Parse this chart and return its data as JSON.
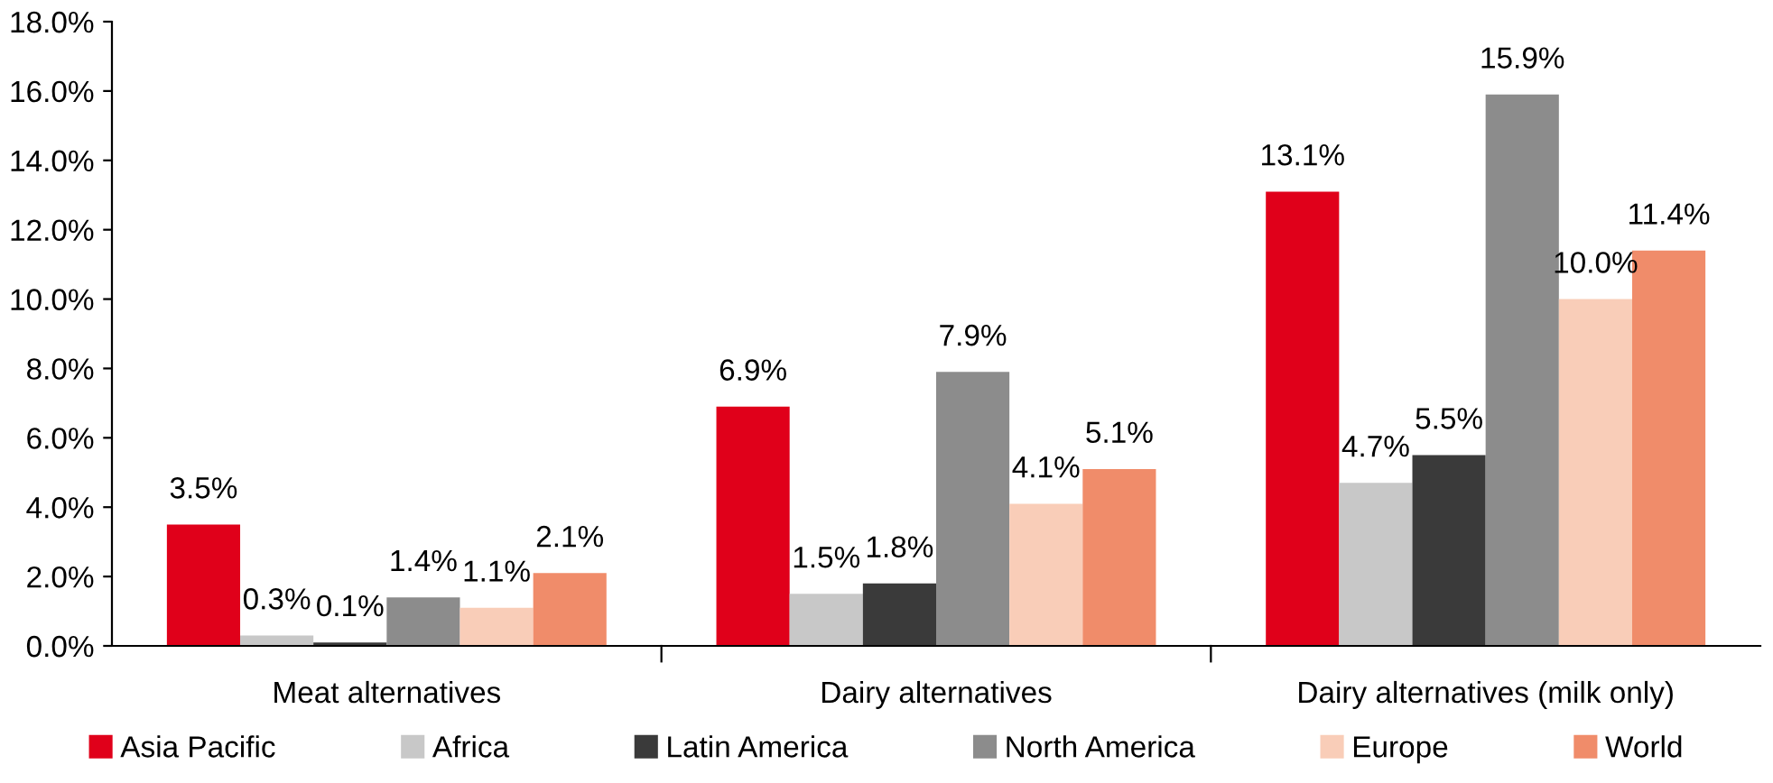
{
  "chart_data": {
    "type": "bar",
    "categories": [
      "Meat alternatives",
      "Dairy alternatives",
      "Dairy alternatives (milk only)"
    ],
    "series": [
      {
        "name": "Asia Pacific",
        "color": "#e0001a",
        "values": [
          3.5,
          6.9,
          13.1
        ],
        "value_labels": [
          "3.5%",
          "6.9%",
          "13.1%"
        ]
      },
      {
        "name": "Africa",
        "color": "#c8c8c8",
        "values": [
          0.3,
          1.5,
          4.7
        ],
        "value_labels": [
          "0.3%",
          "1.5%",
          "4.7%"
        ]
      },
      {
        "name": "Latin America",
        "color": "#3a3a3a",
        "values": [
          0.1,
          1.8,
          5.5
        ],
        "value_labels": [
          "0.1%",
          "1.8%",
          "5.5%"
        ]
      },
      {
        "name": "North America",
        "color": "#8c8c8c",
        "values": [
          1.4,
          7.9,
          15.9
        ],
        "value_labels": [
          "1.4%",
          "7.9%",
          "15.9%"
        ]
      },
      {
        "name": "Europe",
        "color": "#f9cdb8",
        "values": [
          1.1,
          4.1,
          10.0
        ],
        "value_labels": [
          "1.1%",
          "4.1%",
          "10.0%"
        ]
      },
      {
        "name": "World",
        "color": "#f08c6a",
        "values": [
          2.1,
          5.1,
          11.4
        ],
        "value_labels": [
          "2.1%",
          "5.1%",
          "11.4%"
        ]
      }
    ],
    "ylim": [
      0,
      18
    ],
    "yticks": [
      {
        "value": 0,
        "label": "0.0%"
      },
      {
        "value": 2,
        "label": "2.0%"
      },
      {
        "value": 4,
        "label": "4.0%"
      },
      {
        "value": 6,
        "label": "6.0%"
      },
      {
        "value": 8,
        "label": "8.0%"
      },
      {
        "value": 10,
        "label": "10.0%"
      },
      {
        "value": 12,
        "label": "12.0%"
      },
      {
        "value": 14,
        "label": "14.0%"
      },
      {
        "value": 16,
        "label": "16.0%"
      },
      {
        "value": 18,
        "label": "18.0%"
      }
    ],
    "grid": false,
    "legend": "bottom"
  }
}
